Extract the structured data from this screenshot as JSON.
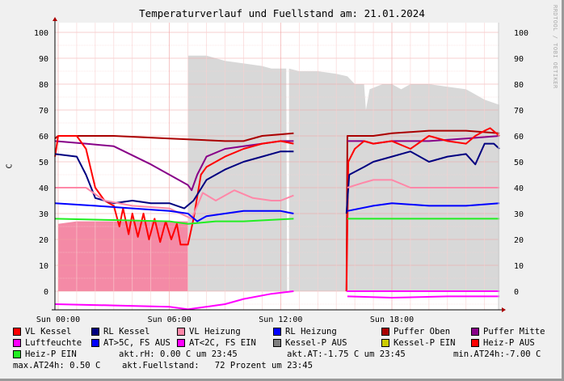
{
  "chart_data": {
    "type": "line",
    "title": "Temperaturverlauf und Fuellstand am: 21.01.2024",
    "ylabel": "C",
    "ylim": [
      -7,
      103
    ],
    "xlim_hours": [
      -0.17,
      23.8
    ],
    "y_ticks": [
      0,
      10,
      20,
      30,
      40,
      50,
      60,
      70,
      80,
      90,
      100
    ],
    "x_ticks": [
      {
        "h": 0,
        "label": "Sun 00:00"
      },
      {
        "h": 6,
        "label": "Sun 06:00"
      },
      {
        "h": 12,
        "label": "Sun 12:00"
      },
      {
        "h": 18,
        "label": "Sun 18:00"
      }
    ],
    "watermark": "RRDTOOL / TOBI OETIKER",
    "areas": [
      {
        "name": "Fuellstand",
        "color": "#d8d8d8",
        "points": [
          [
            7.0,
            0
          ],
          [
            7.0,
            91
          ],
          [
            8,
            91
          ],
          [
            9,
            89
          ],
          [
            10,
            88
          ],
          [
            11,
            87
          ],
          [
            11.5,
            86
          ],
          [
            12.3,
            86
          ],
          [
            12.35,
            0
          ],
          [
            12.45,
            0
          ],
          [
            12.45,
            86
          ],
          [
            13,
            85
          ],
          [
            14,
            85
          ],
          [
            15,
            84
          ],
          [
            15.6,
            83
          ],
          [
            16,
            80
          ],
          [
            16.5,
            80
          ],
          [
            16.6,
            70
          ],
          [
            16.8,
            78
          ],
          [
            17.5,
            80
          ],
          [
            18,
            80
          ],
          [
            18.5,
            78
          ],
          [
            19,
            80
          ],
          [
            20,
            80
          ],
          [
            21,
            79
          ],
          [
            22,
            78
          ],
          [
            22.5,
            76
          ],
          [
            23,
            74
          ],
          [
            23.8,
            72
          ],
          [
            23.8,
            0
          ]
        ]
      },
      {
        "name": "Heiz-P AUS",
        "color": "#f48aa6",
        "points": [
          [
            0.0,
            0
          ],
          [
            0.0,
            26
          ],
          [
            1,
            27
          ],
          [
            3,
            27
          ],
          [
            5,
            27
          ],
          [
            7.0,
            27
          ],
          [
            7.0,
            0
          ]
        ]
      }
    ],
    "series": [
      {
        "name": "Puffer Oben",
        "color": "#aa0000",
        "segments": [
          [
            [
              -0.17,
              59
            ],
            [
              0,
              60
            ],
            [
              3,
              60
            ],
            [
              6,
              59
            ],
            [
              9,
              58
            ],
            [
              10,
              58
            ],
            [
              11,
              60
            ],
            [
              12.7,
              61
            ]
          ],
          [
            [
              15.55,
              0
            ],
            [
              15.6,
              60
            ],
            [
              17,
              60
            ],
            [
              18,
              61
            ],
            [
              20,
              62
            ],
            [
              22,
              62
            ],
            [
              23.8,
              61
            ]
          ]
        ]
      },
      {
        "name": "Puffer Mitte",
        "color": "#880088",
        "segments": [
          [
            [
              -0.17,
              58
            ],
            [
              1.5,
              57
            ],
            [
              3,
              56
            ],
            [
              5,
              49
            ],
            [
              7,
              41
            ],
            [
              7.2,
              39
            ],
            [
              7.5,
              45
            ],
            [
              8,
              52
            ],
            [
              9,
              55
            ],
            [
              10,
              56
            ],
            [
              11,
              57
            ],
            [
              12,
              58
            ],
            [
              12.7,
              58
            ]
          ],
          [
            [
              15.6,
              58
            ],
            [
              16.5,
              58
            ],
            [
              17,
              57
            ],
            [
              18,
              58
            ],
            [
              20,
              58
            ],
            [
              22,
              59
            ],
            [
              23.8,
              60
            ]
          ]
        ]
      },
      {
        "name": "VL Kessel",
        "color": "#ff0000",
        "segments": [
          [
            [
              -0.17,
              52
            ],
            [
              0,
              60
            ],
            [
              1,
              60
            ],
            [
              1.5,
              55
            ],
            [
              2,
              40
            ],
            [
              2.5,
              35
            ],
            [
              3,
              33
            ],
            [
              3.3,
              25
            ],
            [
              3.5,
              32
            ],
            [
              3.8,
              22
            ],
            [
              4,
              30
            ],
            [
              4.3,
              21
            ],
            [
              4.6,
              30
            ],
            [
              4.9,
              20
            ],
            [
              5.2,
              28
            ],
            [
              5.5,
              19
            ],
            [
              5.8,
              27
            ],
            [
              6.1,
              20
            ],
            [
              6.4,
              26
            ],
            [
              6.6,
              18
            ],
            [
              7.0,
              18
            ],
            [
              7.3,
              28
            ],
            [
              7.7,
              45
            ],
            [
              8,
              48
            ],
            [
              9,
              52
            ],
            [
              10,
              55
            ],
            [
              11,
              57
            ],
            [
              12,
              58
            ],
            [
              12.7,
              57
            ]
          ],
          [
            [
              15.55,
              0
            ],
            [
              15.65,
              50
            ],
            [
              16,
              55
            ],
            [
              16.5,
              58
            ],
            [
              17,
              57
            ],
            [
              18,
              58
            ],
            [
              19,
              55
            ],
            [
              20,
              60
            ],
            [
              21,
              58
            ],
            [
              22,
              57
            ],
            [
              22.5,
              60
            ],
            [
              23,
              62
            ],
            [
              23.3,
              63
            ],
            [
              23.8,
              60
            ]
          ]
        ]
      },
      {
        "name": "RL Kessel",
        "color": "#000080",
        "segments": [
          [
            [
              -0.17,
              53
            ],
            [
              1,
              52
            ],
            [
              1.5,
              45
            ],
            [
              2,
              36
            ],
            [
              3,
              34
            ],
            [
              4,
              35
            ],
            [
              5,
              34
            ],
            [
              6,
              34
            ],
            [
              6.8,
              32
            ],
            [
              7.3,
              35
            ],
            [
              8,
              43
            ],
            [
              9,
              47
            ],
            [
              10,
              50
            ],
            [
              11,
              52
            ],
            [
              12,
              54
            ],
            [
              12.7,
              54
            ]
          ],
          [
            [
              15.55,
              30
            ],
            [
              15.7,
              45
            ],
            [
              16.5,
              48
            ],
            [
              17,
              50
            ],
            [
              18,
              52
            ],
            [
              19,
              54
            ],
            [
              20,
              50
            ],
            [
              21,
              52
            ],
            [
              22,
              53
            ],
            [
              22.5,
              49
            ],
            [
              23,
              57
            ],
            [
              23.5,
              57
            ],
            [
              23.8,
              55
            ]
          ]
        ]
      },
      {
        "name": "VL Heizung",
        "color": "#ff88a8",
        "segments": [
          [
            [
              -0.17,
              40
            ],
            [
              1.5,
              40
            ],
            [
              2.5,
              35
            ],
            [
              4,
              33
            ],
            [
              6,
              32
            ],
            [
              7.2,
              28
            ],
            [
              7.8,
              38
            ],
            [
              8.5,
              35
            ],
            [
              9.5,
              39
            ],
            [
              10.5,
              36
            ],
            [
              11.5,
              35
            ],
            [
              12,
              35
            ],
            [
              12.7,
              37
            ]
          ],
          [
            [
              15.6,
              40
            ],
            [
              16.5,
              42
            ],
            [
              17,
              43
            ],
            [
              18,
              43
            ],
            [
              19,
              40
            ],
            [
              21,
              40
            ],
            [
              23,
              40
            ],
            [
              23.8,
              40
            ]
          ]
        ]
      },
      {
        "name": "RL Heizung",
        "color": "#0000ff",
        "segments": [
          [
            [
              -0.17,
              34
            ],
            [
              2,
              33
            ],
            [
              4,
              32
            ],
            [
              6,
              31
            ],
            [
              7,
              30
            ],
            [
              7.5,
              27
            ],
            [
              8,
              29
            ],
            [
              10,
              31
            ],
            [
              12,
              31
            ],
            [
              12.7,
              30
            ]
          ],
          [
            [
              15.6,
              31
            ],
            [
              17,
              33
            ],
            [
              18,
              34
            ],
            [
              20,
              33
            ],
            [
              22,
              33
            ],
            [
              23.8,
              34
            ]
          ]
        ]
      },
      {
        "name": "Heiz-P EIN",
        "color": "#22ee22",
        "segments": [
          [
            [
              -0.17,
              28
            ],
            [
              3,
              27.5
            ],
            [
              6,
              27
            ],
            [
              7,
              26
            ],
            [
              8.5,
              27
            ],
            [
              10,
              27
            ],
            [
              12.7,
              28
            ]
          ],
          [
            [
              15.6,
              28
            ],
            [
              18,
              28
            ],
            [
              21,
              28
            ],
            [
              23.8,
              28
            ]
          ]
        ]
      },
      {
        "name": "Luftfeuchte",
        "color": "#ff00ff",
        "segments": [
          [
            [
              15.55,
              0
            ],
            [
              23.8,
              0
            ]
          ]
        ]
      },
      {
        "name": "AT",
        "color": "#ff00ff",
        "segments": [
          [
            [
              -0.17,
              -5
            ],
            [
              3,
              -5.5
            ],
            [
              6,
              -6
            ],
            [
              7,
              -7
            ],
            [
              8,
              -6
            ],
            [
              9,
              -5
            ],
            [
              10,
              -3
            ],
            [
              11.5,
              -1
            ],
            [
              12.7,
              0
            ]
          ],
          [
            [
              15.6,
              -2
            ],
            [
              18,
              -2.5
            ],
            [
              21,
              -2
            ],
            [
              23,
              -2
            ],
            [
              23.8,
              -2
            ]
          ]
        ]
      }
    ]
  },
  "legend": {
    "items": [
      {
        "label": "VL Kessel",
        "color": "#ff0000"
      },
      {
        "label": "RL Kessel",
        "color": "#000080"
      },
      {
        "label": "VL Heizung",
        "color": "#ff88a8"
      },
      {
        "label": "RL Heizung",
        "color": "#0000ff"
      },
      {
        "label": "Puffer Oben",
        "color": "#aa0000"
      },
      {
        "label": "Puffer Mitte",
        "color": "#880088"
      },
      {
        "label": "Luftfeuchte",
        "color": "#ff00ff"
      },
      {
        "label": "AT>5C, FS AUS",
        "color": "#0000ff"
      },
      {
        "label": "AT<2C, FS EIN",
        "color": "#ff00ff"
      },
      {
        "label": "Kessel-P AUS",
        "color": "#808080"
      },
      {
        "label": "Kessel-P EIN",
        "color": "#cccc00"
      },
      {
        "label": "Heiz-P AUS",
        "color": "#ff0000"
      },
      {
        "label": "Heiz-P EIN",
        "color": "#22ee22"
      }
    ],
    "akt_rh": "akt.rH: 0.00 C um 23:45",
    "akt_at": "akt.AT:-1.75 C um 23:45",
    "min_at": "min.AT24h:-7.00 C",
    "max_at": "max.AT24h: 0.50 C",
    "fuellstand": "akt.Fuellstand:   72 Prozent um 23:45"
  }
}
